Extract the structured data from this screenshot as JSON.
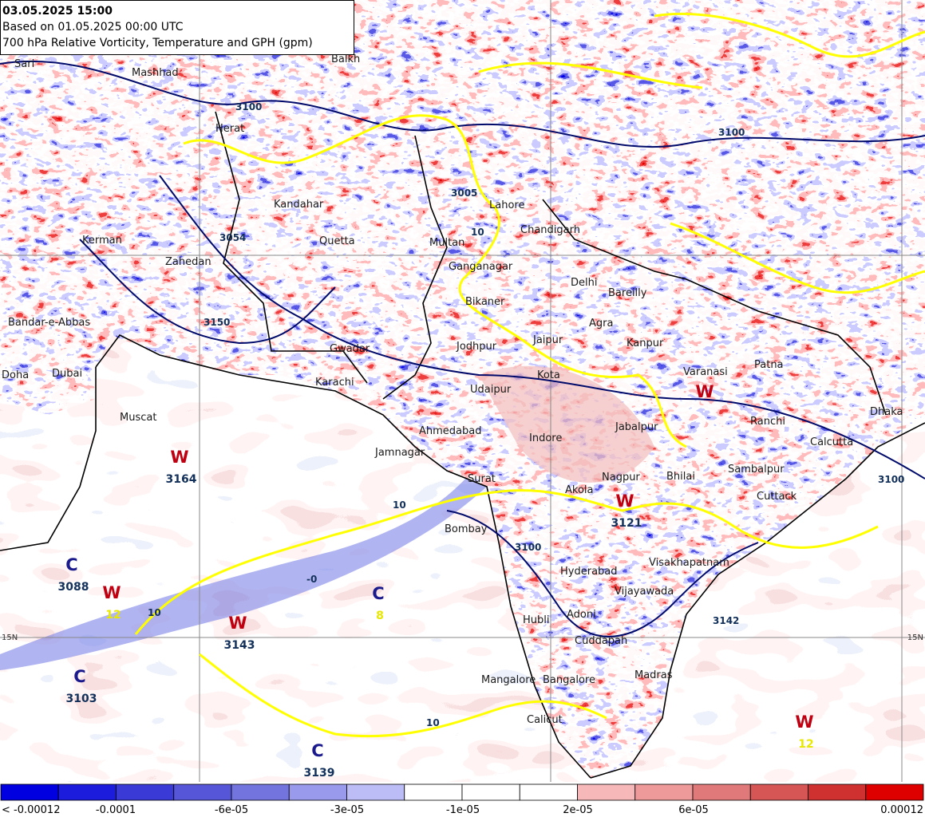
{
  "header": {
    "title": "03.05.2025 15:00",
    "run": "Based on 01.05.2025 00:00 UTC",
    "product": "700 hPa Relative Vorticity, Temperature and GPH (gpm)"
  },
  "cities": [
    "Sari",
    "Mashhad",
    "Herat",
    "Balkh",
    "Kandahar",
    "Kerman",
    "Zahedan",
    "Quetta",
    "Bandar-e-Abbas",
    "Gwadar",
    "Karachi",
    "Doha",
    "Dubai",
    "Muscat",
    "Multan",
    "Lahore",
    "Chandigarh",
    "Ganganagar",
    "Delhi",
    "Bareilly",
    "Bikaner",
    "Agra",
    "Jodhpur",
    "Jaipur",
    "Kanpur",
    "Varanasi",
    "Patna",
    "Kota",
    "Udaipur",
    "Ahmedabad",
    "Indore",
    "Jabalpur",
    "Ranchi",
    "Dhaka",
    "Calcutta",
    "Jamnagar",
    "Surat",
    "Nagpur",
    "Bhilai",
    "Sambalpur",
    "Cuttack",
    "Akola",
    "Bombay",
    "Hyderabad",
    "Visakhapatnam",
    "Vijayawada",
    "Hubli",
    "Adoni",
    "Cuddapah",
    "Mangalore",
    "Bangalore",
    "Madras",
    "Calicut"
  ],
  "systems": [
    {
      "letter": "W",
      "value": "3164"
    },
    {
      "letter": "C",
      "value": "3088"
    },
    {
      "letter": "W",
      "value": "12"
    },
    {
      "letter": "C",
      "value": "8"
    },
    {
      "letter": "W",
      "value": "3143"
    },
    {
      "letter": "C",
      "value": "3103"
    },
    {
      "letter": "W",
      "value": "3121"
    },
    {
      "letter": "W"
    },
    {
      "letter": "C",
      "value": "3139"
    },
    {
      "letter": "W",
      "value": "12"
    }
  ],
  "contour_labels": [
    "3100",
    "3150",
    "3054",
    "3005",
    "3100",
    "3142",
    "3100",
    "3100",
    "-0",
    "10",
    "10",
    "10",
    "10"
  ],
  "lat_labels": [
    "15N",
    "15N"
  ],
  "colorbar": {
    "colors": [
      "#0000e0",
      "#1c1cdc",
      "#3a3ad6",
      "#5656d8",
      "#7474de",
      "#9a9aec",
      "#bcbcf6",
      "#ffffff",
      "#ffffff",
      "#ffffff",
      "#f6b8b8",
      "#ee9a9a",
      "#e07a7a",
      "#d65656",
      "#cf3030",
      "#de0000"
    ],
    "labels": [
      "< -0.00012",
      "-0.0001",
      "-6e-05",
      "-3e-05",
      "-1e-05",
      "2e-05",
      "6e-05",
      "0.00012"
    ]
  }
}
